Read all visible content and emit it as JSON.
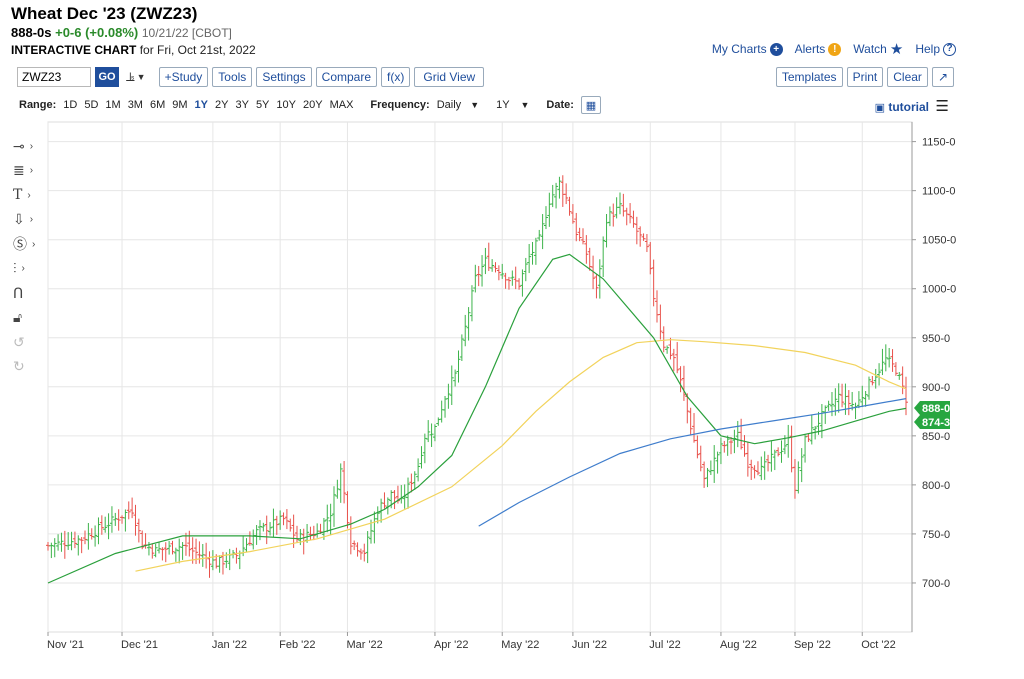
{
  "header": {
    "title": "Wheat Dec '23 (ZWZ23)",
    "last_price": "888-0s",
    "change": "+0-6 (+0.08%)",
    "date_exchange": "10/21/22 [CBOT]",
    "subtitle_bold": "INTERACTIVE CHART",
    "subtitle_rest": "for Fri, Oct 21st, 2022"
  },
  "top_links": {
    "my_charts": "My Charts",
    "alerts": "Alerts",
    "watch": "Watch",
    "help": "Help"
  },
  "toolbar": {
    "symbol_value": "ZWZ23",
    "go": "GO",
    "study": "+Study",
    "tools": "Tools",
    "settings": "Settings",
    "compare": "Compare",
    "fx": "f(x)",
    "grid_view": "Grid View",
    "templates": "Templates",
    "print": "Print",
    "clear": "Clear"
  },
  "range_bar": {
    "range_label": "Range:",
    "ranges": [
      "1D",
      "5D",
      "1M",
      "3M",
      "6M",
      "9M",
      "1Y",
      "2Y",
      "3Y",
      "5Y",
      "10Y",
      "20Y",
      "MAX"
    ],
    "active_range": "1Y",
    "frequency_label": "Frequency:",
    "frequency_value": "Daily",
    "period_value": "1Y",
    "date_label": "Date:",
    "tutorial": "tutorial"
  },
  "colors": {
    "up_bar": "#3cb34a",
    "down_bar": "#e8504a",
    "ma_green": "#2aa03c",
    "ma_yellow": "#f2d35c",
    "ma_blue": "#3f7dcc",
    "price_tag": "#27a640",
    "accent": "#1f4e9c"
  },
  "chart_data": {
    "type": "ohlc_bar",
    "y_range": [
      650,
      1170
    ],
    "y_ticks": [
      "1150-0",
      "1100-0",
      "1050-0",
      "1000-0",
      "950-0",
      "900-0",
      "850-0",
      "800-0",
      "750-0",
      "700-0"
    ],
    "x_ticks": [
      "Nov '21",
      "Dec '21",
      "Jan '22",
      "Feb '22",
      "Mar '22",
      "Apr '22",
      "May '22",
      "Jun '22",
      "Jul '22",
      "Aug '22",
      "Sep '22",
      "Oct '22"
    ],
    "x_range": [
      0,
      255
    ],
    "x_tick_positions": [
      0,
      22,
      49,
      69,
      89,
      115,
      135,
      156,
      179,
      200,
      222,
      242
    ],
    "price_path": [
      [
        0,
        738
      ],
      [
        10,
        745
      ],
      [
        20,
        765
      ],
      [
        25,
        775
      ],
      [
        28,
        740
      ],
      [
        32,
        733
      ],
      [
        40,
        738
      ],
      [
        50,
        720
      ],
      [
        56,
        728
      ],
      [
        62,
        752
      ],
      [
        70,
        765
      ],
      [
        74,
        745
      ],
      [
        80,
        752
      ],
      [
        84,
        772
      ],
      [
        87,
        815
      ],
      [
        90,
        742
      ],
      [
        94,
        732
      ],
      [
        98,
        775
      ],
      [
        102,
        790
      ],
      [
        105,
        782
      ],
      [
        110,
        820
      ],
      [
        112,
        850
      ],
      [
        115,
        858
      ],
      [
        118,
        890
      ],
      [
        121,
        912
      ],
      [
        124,
        960
      ],
      [
        127,
        1010
      ],
      [
        130,
        1028
      ],
      [
        134,
        1020
      ],
      [
        137,
        1010
      ],
      [
        140,
        1005
      ],
      [
        143,
        1032
      ],
      [
        146,
        1050
      ],
      [
        149,
        1090
      ],
      [
        152,
        1108
      ],
      [
        154,
        1092
      ],
      [
        157,
        1058
      ],
      [
        160,
        1036
      ],
      [
        163,
        998
      ],
      [
        166,
        1072
      ],
      [
        170,
        1083
      ],
      [
        174,
        1065
      ],
      [
        178,
        1040
      ],
      [
        180,
        992
      ],
      [
        183,
        943
      ],
      [
        186,
        930
      ],
      [
        188,
        905
      ],
      [
        192,
        845
      ],
      [
        195,
        805
      ],
      [
        200,
        838
      ],
      [
        205,
        850
      ],
      [
        208,
        823
      ],
      [
        212,
        815
      ],
      [
        216,
        830
      ],
      [
        220,
        845
      ],
      [
        222,
        798
      ],
      [
        225,
        845
      ],
      [
        230,
        870
      ],
      [
        235,
        890
      ],
      [
        240,
        880
      ],
      [
        245,
        908
      ],
      [
        249,
        928
      ],
      [
        252,
        918
      ],
      [
        255,
        888
      ]
    ],
    "bars_seed_note": "",
    "ma_green": [
      [
        0,
        700
      ],
      [
        20,
        730
      ],
      [
        40,
        748
      ],
      [
        60,
        748
      ],
      [
        75,
        745
      ],
      [
        90,
        760
      ],
      [
        100,
        775
      ],
      [
        110,
        798
      ],
      [
        120,
        830
      ],
      [
        130,
        900
      ],
      [
        140,
        980
      ],
      [
        150,
        1030
      ],
      [
        155,
        1035
      ],
      [
        165,
        1010
      ],
      [
        180,
        950
      ],
      [
        190,
        890
      ],
      [
        200,
        850
      ],
      [
        210,
        842
      ],
      [
        220,
        848
      ],
      [
        230,
        855
      ],
      [
        240,
        865
      ],
      [
        250,
        875
      ],
      [
        255,
        878
      ]
    ],
    "ma_yellow": [
      [
        26,
        712
      ],
      [
        40,
        722
      ],
      [
        60,
        732
      ],
      [
        80,
        745
      ],
      [
        100,
        765
      ],
      [
        120,
        798
      ],
      [
        135,
        840
      ],
      [
        145,
        875
      ],
      [
        155,
        905
      ],
      [
        165,
        930
      ],
      [
        175,
        945
      ],
      [
        185,
        948
      ],
      [
        195,
        946
      ],
      [
        210,
        942
      ],
      [
        225,
        935
      ],
      [
        240,
        922
      ],
      [
        250,
        905
      ],
      [
        255,
        898
      ]
    ],
    "ma_blue": [
      [
        128,
        758
      ],
      [
        140,
        782
      ],
      [
        155,
        808
      ],
      [
        170,
        832
      ],
      [
        185,
        847
      ],
      [
        200,
        857
      ],
      [
        215,
        865
      ],
      [
        230,
        873
      ],
      [
        245,
        882
      ],
      [
        255,
        888
      ]
    ],
    "last_price_tag": "888-0",
    "ma_tag": "874-3"
  }
}
